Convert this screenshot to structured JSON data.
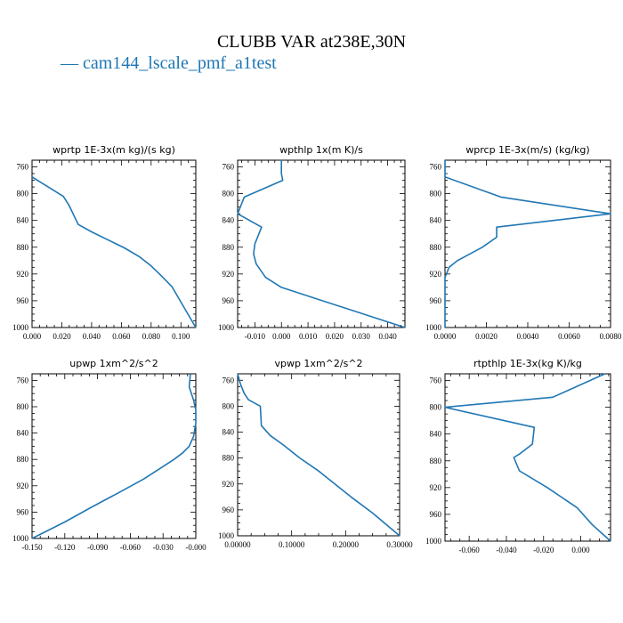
{
  "title": "CLUBB VAR at238E,30N",
  "legend": {
    "label": "cam144_lscale_pmf_a1test",
    "color": "#1f77b4"
  },
  "chart_data": [
    {
      "type": "line",
      "title": "wprtp  1E-3x(m kg)/(s kg)",
      "xlim": [
        0.0,
        0.11
      ],
      "ylim": [
        1000,
        750
      ],
      "xticks": [
        0.0,
        0.02,
        0.04,
        0.06,
        0.08,
        0.1
      ],
      "xtick_labels": [
        "0.000",
        "0.020",
        "0.040",
        "0.060",
        "0.080",
        "0.100"
      ],
      "yticks": [
        760,
        800,
        840,
        880,
        920,
        960,
        1000
      ],
      "series": [
        {
          "x": [
            0.0,
            0.021,
            0.025,
            0.028,
            0.031,
            0.04,
            0.05,
            0.062,
            0.072,
            0.08,
            0.086,
            0.094,
            0.11
          ],
          "y": [
            775,
            804,
            818,
            832,
            846,
            857,
            868,
            881,
            894,
            908,
            921,
            939,
            1000
          ]
        }
      ]
    },
    {
      "type": "line",
      "title": "wpthlp  1x(m K)/s",
      "xlim": [
        -0.0165,
        0.0465
      ],
      "ylim": [
        1000,
        750
      ],
      "xticks": [
        -0.01,
        0.0,
        0.01,
        0.02,
        0.03,
        0.04
      ],
      "xtick_labels": [
        "-0.010",
        "0.000",
        "0.010",
        "0.020",
        "0.030",
        "0.040"
      ],
      "yticks": [
        760,
        800,
        840,
        880,
        920,
        960,
        1000
      ],
      "series": [
        {
          "x": [
            0.0,
            0.0,
            0.0005,
            -0.014,
            -0.0165,
            -0.0075,
            -0.01,
            -0.0105,
            -0.0095,
            -0.006,
            0.0,
            0.0465
          ],
          "y": [
            750,
            770,
            780,
            805,
            830,
            850,
            875,
            890,
            905,
            925,
            940,
            1000
          ]
        }
      ]
    },
    {
      "type": "line",
      "title": "wprcp  1E-3x(m/s) (kg/kg)",
      "xlim": [
        0.0,
        0.008
      ],
      "ylim": [
        1000,
        750
      ],
      "xticks": [
        0.0,
        0.002,
        0.004,
        0.006,
        0.008
      ],
      "xtick_labels": [
        "0.0000",
        "0.0020",
        "0.0040",
        "0.0060",
        "0.0080"
      ],
      "yticks": [
        760,
        800,
        840,
        880,
        920,
        960,
        1000
      ],
      "series": [
        {
          "x": [
            0.0,
            0.0,
            0.0027,
            0.008,
            0.0025,
            0.0025,
            0.0018,
            0.0006,
            0.0002,
            0.0,
            0.0
          ],
          "y": [
            750,
            775,
            805,
            830,
            850,
            865,
            880,
            900,
            910,
            925,
            1000
          ]
        }
      ]
    },
    {
      "type": "line",
      "title": "upwp  1xm^2/s^2",
      "xlim": [
        -0.15,
        0.0
      ],
      "ylim": [
        1000,
        750
      ],
      "xticks": [
        -0.15,
        -0.12,
        -0.09,
        -0.06,
        -0.03,
        0.0
      ],
      "xtick_labels": [
        "-0.150",
        "-0.120",
        "-0.090",
        "-0.060",
        "-0.030",
        "-0.000"
      ],
      "yticks": [
        760,
        800,
        840,
        880,
        920,
        960,
        1000
      ],
      "series": [
        {
          "x": [
            -0.005,
            -0.006,
            -0.002,
            0.0,
            0.0,
            -0.002,
            -0.006,
            -0.012,
            -0.02,
            -0.032,
            -0.048,
            -0.07,
            -0.095,
            -0.12,
            -0.15
          ],
          "y": [
            750,
            770,
            790,
            805,
            825,
            845,
            860,
            870,
            880,
            893,
            910,
            930,
            952,
            975,
            1000
          ]
        }
      ]
    },
    {
      "type": "line",
      "title": "vpwp  1xm^2/s^2",
      "xlim": [
        0.0,
        0.3
      ],
      "ylim": [
        1000,
        750
      ],
      "xticks": [
        0.0,
        0.1,
        0.2,
        0.3
      ],
      "xtick_labels": [
        "0.00000",
        "0.10000",
        "0.20000",
        "0.30000"
      ],
      "yticks": [
        760,
        800,
        840,
        880,
        920,
        960,
        1000
      ],
      "series": [
        {
          "x": [
            0.0,
            0.005,
            0.012,
            0.02,
            0.042,
            0.044,
            0.06,
            0.085,
            0.115,
            0.15,
            0.18,
            0.21,
            0.25,
            0.3
          ],
          "y": [
            750,
            765,
            780,
            790,
            800,
            830,
            845,
            860,
            880,
            900,
            920,
            940,
            965,
            1000
          ]
        }
      ]
    },
    {
      "type": "line",
      "title": "rtpthlp  1E-3x(kg K)/kg",
      "xlim": [
        -0.073,
        0.016
      ],
      "ylim": [
        1000,
        750
      ],
      "xticks": [
        -0.06,
        -0.04,
        -0.02,
        0.0
      ],
      "xtick_labels": [
        "-0.060",
        "-0.040",
        "-0.020",
        "0.000"
      ],
      "yticks": [
        760,
        800,
        840,
        880,
        920,
        960,
        1000
      ],
      "series": [
        {
          "x": [
            0.013,
            -0.015,
            -0.073,
            -0.025,
            -0.026,
            -0.033,
            -0.036,
            -0.033,
            -0.018,
            -0.002,
            0.006,
            0.016
          ],
          "y": [
            750,
            785,
            800,
            830,
            855,
            870,
            875,
            895,
            920,
            950,
            975,
            1000
          ]
        }
      ]
    }
  ]
}
